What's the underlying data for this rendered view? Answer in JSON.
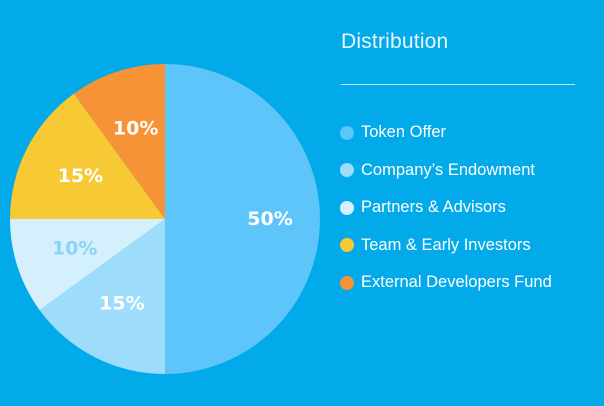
{
  "chart_data": {
    "type": "pie",
    "title": "Distribution",
    "legend_position": "right",
    "slices": [
      {
        "name": "Token Offer",
        "value": 50,
        "label": "50%",
        "color": "#5ec5fb",
        "label_color": "#ffffff"
      },
      {
        "name": "Company’s Endowment",
        "value": 15,
        "label": "15%",
        "color": "#9edcfc",
        "label_color": "#ffffff"
      },
      {
        "name": "Partners & Advisors",
        "value": 10,
        "label": "10%",
        "color": "#d4f0fd",
        "label_color": "#8dd3f5"
      },
      {
        "name": "Team & Early Investors",
        "value": 15,
        "label": "15%",
        "color": "#f6c935",
        "label_color": "#ffffff"
      },
      {
        "name": "External Developers Fund",
        "value": 10,
        "label": "10%",
        "color": "#f59336",
        "label_color": "#ffffff"
      }
    ]
  }
}
